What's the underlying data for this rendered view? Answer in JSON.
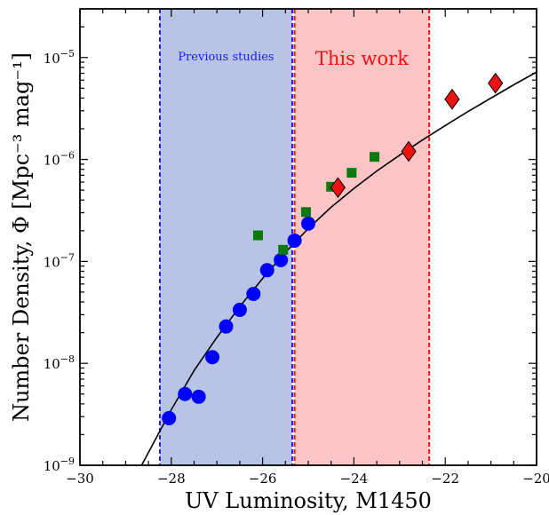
{
  "chart_data": {
    "type": "scatter",
    "xlabel": "UV Luminosity, M1450",
    "ylabel": "Number Density, Φ [Mpc⁻³ mag⁻¹]",
    "xlim": [
      -30,
      -20
    ],
    "ylim": [
      1e-09,
      3e-05
    ],
    "yscale": "log",
    "x_ticks": [
      -30,
      -28,
      -26,
      -24,
      -22,
      -20
    ],
    "x_tick_labels": [
      "−30",
      "−28",
      "−26",
      "−24",
      "−22",
      "−20"
    ],
    "y_ticks": [
      1e-09,
      1e-08,
      1e-07,
      1e-06,
      1e-05
    ],
    "y_tick_labels": [
      {
        "base": "10",
        "exp": "−9"
      },
      {
        "base": "10",
        "exp": "−8"
      },
      {
        "base": "10",
        "exp": "−7"
      },
      {
        "base": "10",
        "exp": "−6"
      },
      {
        "base": "10",
        "exp": "−5"
      }
    ],
    "bands": [
      {
        "label": "Previous studies",
        "x_range": [
          -28.25,
          -25.35
        ],
        "fill": "#b8c4e6",
        "line_color": "#1a1aff"
      },
      {
        "label": "This work",
        "x_range": [
          -25.3,
          -22.35
        ],
        "fill": "#fcc5c5",
        "line_color": "#ee1111"
      }
    ],
    "series": [
      {
        "marker": "circle",
        "color": "#0000ff",
        "x": [
          -28.05,
          -27.7,
          -27.4,
          -27.1,
          -26.8,
          -26.5,
          -26.2,
          -25.9,
          -25.6,
          -25.3,
          -25.0
        ],
        "y": [
          2.9e-09,
          5e-09,
          4.7e-09,
          1.15e-08,
          2.3e-08,
          3.35e-08,
          4.8e-08,
          8.2e-08,
          1.03e-07,
          1.6e-07,
          2.35e-07
        ]
      },
      {
        "marker": "square",
        "color": "#0b7a0b",
        "x": [
          -26.1,
          -25.55,
          -25.05,
          -24.5,
          -24.05,
          -23.55
        ],
        "y": [
          1.8e-07,
          1.3e-07,
          3.05e-07,
          5.4e-07,
          7.4e-07,
          1.06e-06
        ]
      },
      {
        "marker": "diamond",
        "color": "#ee1111",
        "x": [
          -24.35,
          -22.8,
          -21.85,
          -20.9
        ],
        "y": [
          5.3e-07,
          1.2e-06,
          3.9e-06,
          5.6e-06
        ]
      }
    ],
    "fit_curve": {
      "color": "#000000",
      "x": [
        -28.65,
        -28.0,
        -27.5,
        -27.0,
        -26.5,
        -26.0,
        -25.5,
        -25.0,
        -24.5,
        -24.0,
        -23.5,
        -23.0,
        -22.5,
        -22.0,
        -21.5,
        -21.0,
        -20.5,
        -20.0
      ],
      "y": [
        1e-09,
        3.5e-09,
        8.5e-09,
        1.8e-08,
        3.6e-08,
        6.8e-08,
        1.23e-07,
        2.1e-07,
        3.4e-07,
        5.2e-07,
        7.7e-07,
        1.1e-06,
        1.55e-06,
        2.15e-06,
        2.95e-06,
        4e-06,
        5.4e-06,
        7.2e-06
      ]
    }
  }
}
